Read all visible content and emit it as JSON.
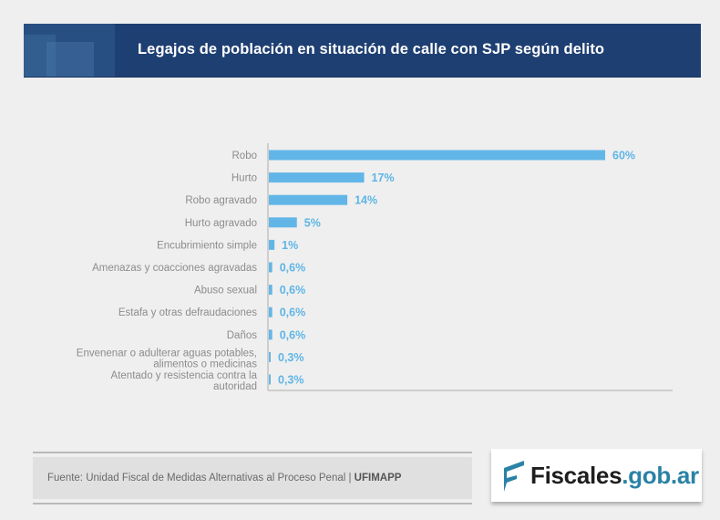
{
  "header": {
    "title": "Legajos de población en situación de calle con SJP según delito"
  },
  "colors": {
    "bar": "#62b6e7",
    "value_label": "#5eb5e6",
    "header_bg": "#1e3f72",
    "logo_accent": "#2a82a6"
  },
  "chart_data": {
    "type": "bar",
    "orientation": "horizontal",
    "title": "Legajos de población en situación de calle con SJP según delito",
    "xlabel": "",
    "ylabel": "",
    "unit": "%",
    "xlim": [
      0,
      72
    ],
    "grid": false,
    "legend": "none",
    "categories": [
      [
        "Robo"
      ],
      [
        "Hurto"
      ],
      [
        "Robo agravado"
      ],
      [
        "Hurto agravado"
      ],
      [
        "Encubrimiento simple"
      ],
      [
        "Amenazas y coacciones agravadas"
      ],
      [
        "Abuso sexual"
      ],
      [
        "Estafa y otras defraudaciones"
      ],
      [
        "Daños"
      ],
      [
        "Envenenar o adulterar aguas potables,",
        "alimentos o medicinas"
      ],
      [
        "Atentado y resistencia contra la",
        "autoridad"
      ]
    ],
    "values": [
      60,
      17,
      14,
      5,
      1,
      0.6,
      0.6,
      0.6,
      0.6,
      0.3,
      0.3
    ],
    "value_labels": [
      "60%",
      "17%",
      "14%",
      "5%",
      "1%",
      "0,6%",
      "0,6%",
      "0,6%",
      "0,6%",
      "0,3%",
      "0,3%"
    ]
  },
  "footer": {
    "source_prefix": "Fuente: Unidad Fiscal de Medidas Alternativas al Proceso Penal | ",
    "source_org": "UFIMAPP",
    "logo_name": "Fiscales",
    "logo_domain": ".gob.ar"
  }
}
